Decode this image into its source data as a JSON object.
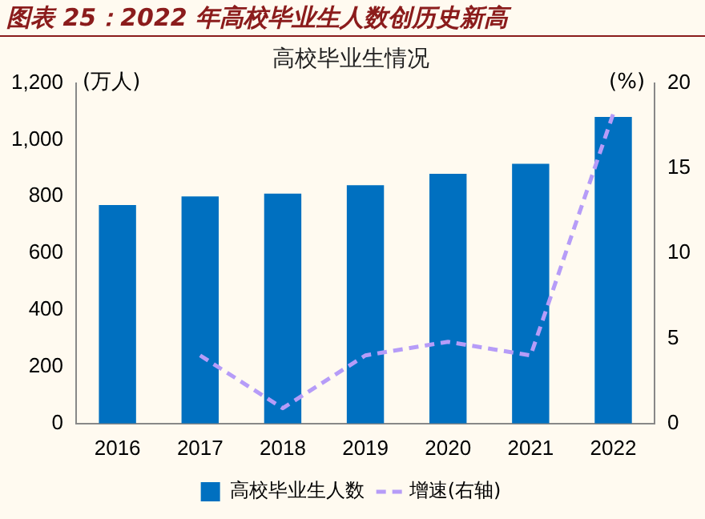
{
  "chart_data": {
    "type": "bar",
    "title": "图表 25：2022 年高校毕业生人数创历史新高",
    "subtitle": "高校毕业生情况",
    "ylabel": "(万人)",
    "y2label": "(%)",
    "categories": [
      "2016",
      "2017",
      "2018",
      "2019",
      "2020",
      "2021",
      "2022"
    ],
    "series": [
      {
        "name": "高校毕业生人数",
        "color": "#0070c0",
        "values": [
          770,
          800,
          810,
          840,
          880,
          915,
          1080
        ]
      },
      {
        "name": "增速(右轴)",
        "type": "line",
        "axis": "y2",
        "color": "#b69cf8",
        "line_style": "dashed",
        "values": [
          null,
          4.0,
          0.9,
          4.0,
          4.8,
          4.0,
          18.2
        ]
      }
    ],
    "ylim": [
      0,
      1200
    ],
    "yticks": [
      {
        "value": 0,
        "label": "0"
      },
      {
        "value": 200,
        "label": "200"
      },
      {
        "value": 400,
        "label": "400"
      },
      {
        "value": 600,
        "label": "600"
      },
      {
        "value": 800,
        "label": "800"
      },
      {
        "value": 1000,
        "label": "1,000"
      },
      {
        "value": 1200,
        "label": "1,200"
      }
    ],
    "y2lim": [
      0,
      20
    ],
    "y2ticks": [
      0,
      5,
      10,
      15,
      20
    ],
    "grid": false,
    "legend": "bottom",
    "marker": "none"
  }
}
